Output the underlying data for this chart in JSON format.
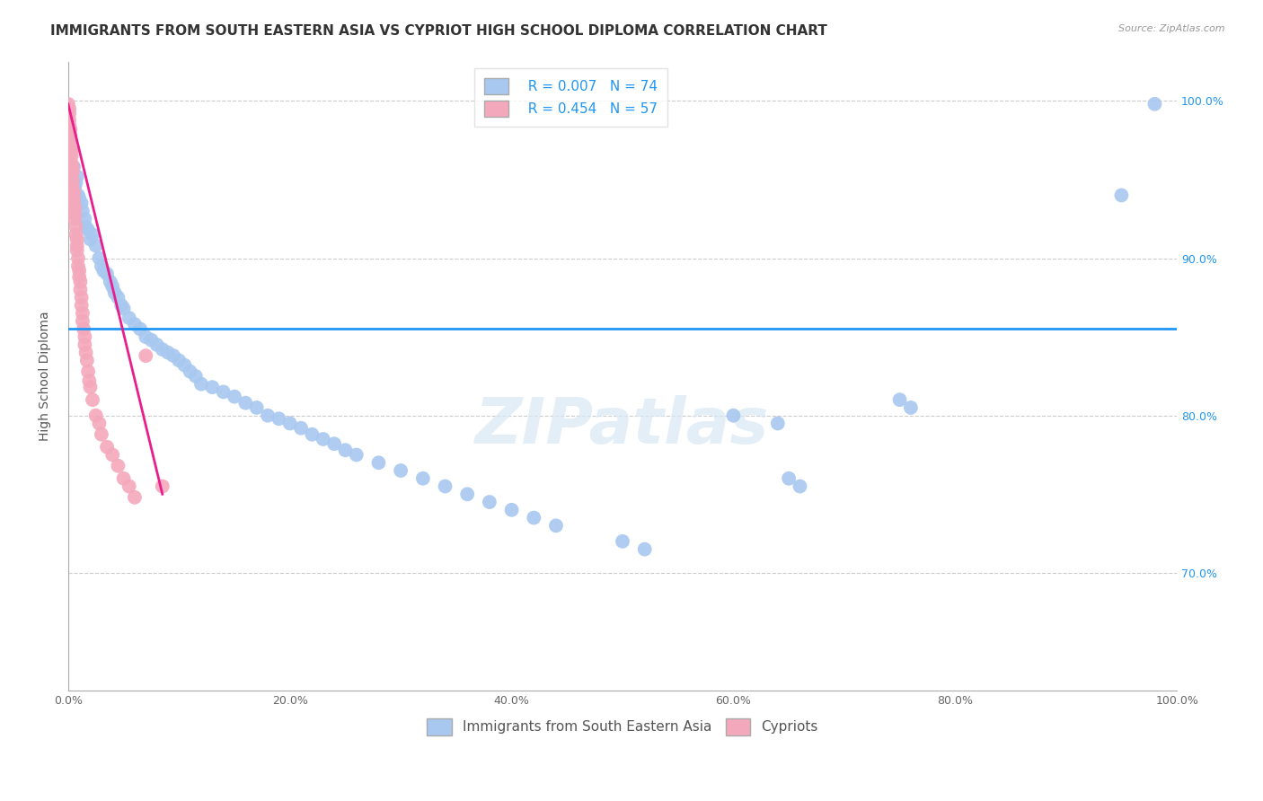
{
  "title": "IMMIGRANTS FROM SOUTH EASTERN ASIA VS CYPRIOT HIGH SCHOOL DIPLOMA CORRELATION CHART",
  "source": "Source: ZipAtlas.com",
  "ylabel": "High School Diploma",
  "watermark": "ZIPatlas",
  "legend_labels": [
    "Immigrants from South Eastern Asia",
    "Cypriots"
  ],
  "R_blue": 0.007,
  "N_blue": 74,
  "R_pink": 0.454,
  "N_pink": 57,
  "blue_color": "#A8C8F0",
  "pink_color": "#F4A8BC",
  "trend_blue_color": "#2196F3",
  "trend_pink_color": "#E91E8C",
  "xlim": [
    0.0,
    1.0
  ],
  "ylim": [
    0.625,
    1.025
  ],
  "xticklabels": [
    "0.0%",
    "20.0%",
    "40.0%",
    "60.0%",
    "80.0%",
    "100.0%"
  ],
  "xticks": [
    0.0,
    0.2,
    0.4,
    0.6,
    0.8,
    1.0
  ],
  "ytick_right_labels": [
    "100.0%",
    "90.0%",
    "80.0%",
    "70.0%"
  ],
  "ytick_right_values": [
    1.0,
    0.9,
    0.8,
    0.7
  ],
  "blue_x": [
    0.002,
    0.003,
    0.004,
    0.005,
    0.006,
    0.007,
    0.008,
    0.009,
    0.01,
    0.012,
    0.013,
    0.015,
    0.016,
    0.018,
    0.02,
    0.022,
    0.025,
    0.028,
    0.03,
    0.032,
    0.035,
    0.038,
    0.04,
    0.042,
    0.045,
    0.048,
    0.05,
    0.055,
    0.06,
    0.065,
    0.07,
    0.075,
    0.08,
    0.085,
    0.09,
    0.095,
    0.1,
    0.105,
    0.11,
    0.115,
    0.12,
    0.13,
    0.14,
    0.15,
    0.16,
    0.17,
    0.18,
    0.19,
    0.2,
    0.21,
    0.22,
    0.23,
    0.24,
    0.25,
    0.26,
    0.28,
    0.3,
    0.32,
    0.34,
    0.36,
    0.38,
    0.4,
    0.42,
    0.44,
    0.5,
    0.52,
    0.6,
    0.64,
    0.65,
    0.66,
    0.75,
    0.76,
    0.95,
    0.98
  ],
  "blue_y": [
    0.96,
    0.955,
    0.95,
    0.958,
    0.945,
    0.948,
    0.952,
    0.94,
    0.938,
    0.935,
    0.93,
    0.925,
    0.92,
    0.918,
    0.912,
    0.915,
    0.908,
    0.9,
    0.895,
    0.892,
    0.89,
    0.885,
    0.882,
    0.878,
    0.875,
    0.87,
    0.868,
    0.862,
    0.858,
    0.855,
    0.85,
    0.848,
    0.845,
    0.842,
    0.84,
    0.838,
    0.835,
    0.832,
    0.828,
    0.825,
    0.82,
    0.818,
    0.815,
    0.812,
    0.808,
    0.805,
    0.8,
    0.798,
    0.795,
    0.792,
    0.788,
    0.785,
    0.782,
    0.778,
    0.775,
    0.77,
    0.765,
    0.76,
    0.755,
    0.75,
    0.745,
    0.74,
    0.735,
    0.73,
    0.72,
    0.715,
    0.8,
    0.795,
    0.76,
    0.755,
    0.81,
    0.805,
    0.94,
    0.998
  ],
  "pink_x": [
    0.0,
    0.001,
    0.001,
    0.001,
    0.001,
    0.002,
    0.002,
    0.002,
    0.002,
    0.003,
    0.003,
    0.003,
    0.004,
    0.004,
    0.004,
    0.004,
    0.005,
    0.005,
    0.005,
    0.006,
    0.006,
    0.006,
    0.007,
    0.007,
    0.008,
    0.008,
    0.008,
    0.009,
    0.009,
    0.01,
    0.01,
    0.011,
    0.011,
    0.012,
    0.012,
    0.013,
    0.013,
    0.014,
    0.015,
    0.015,
    0.016,
    0.017,
    0.018,
    0.019,
    0.02,
    0.022,
    0.025,
    0.028,
    0.03,
    0.035,
    0.04,
    0.045,
    0.05,
    0.055,
    0.06,
    0.07,
    0.085
  ],
  "pink_y": [
    0.998,
    0.995,
    0.992,
    0.988,
    0.985,
    0.982,
    0.978,
    0.975,
    0.97,
    0.968,
    0.965,
    0.96,
    0.958,
    0.955,
    0.95,
    0.945,
    0.942,
    0.938,
    0.935,
    0.932,
    0.928,
    0.925,
    0.92,
    0.915,
    0.912,
    0.908,
    0.905,
    0.9,
    0.895,
    0.892,
    0.888,
    0.885,
    0.88,
    0.875,
    0.87,
    0.865,
    0.86,
    0.855,
    0.85,
    0.845,
    0.84,
    0.835,
    0.828,
    0.822,
    0.818,
    0.81,
    0.8,
    0.795,
    0.788,
    0.78,
    0.775,
    0.768,
    0.76,
    0.755,
    0.748,
    0.838,
    0.755
  ],
  "pink_trend_x": [
    0.0,
    0.085
  ],
  "pink_trend_y": [
    0.998,
    0.75
  ],
  "blue_trend_y": 0.855,
  "title_fontsize": 11,
  "axis_label_fontsize": 10,
  "tick_fontsize": 9,
  "legend_fontsize": 11,
  "background_color": "#FFFFFF",
  "grid_color": "#CCCCCC",
  "right_tick_color": "#2196F3"
}
